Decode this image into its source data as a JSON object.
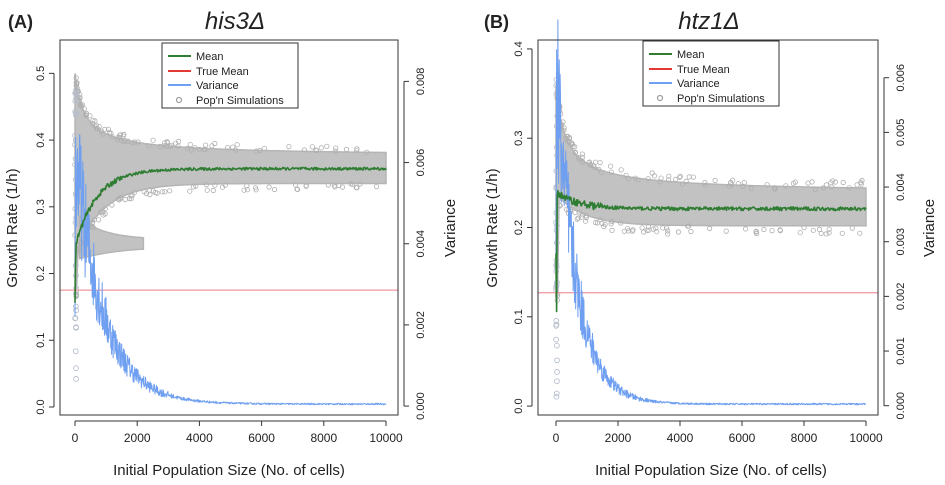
{
  "chart_data": [
    {
      "type": "scatter",
      "panel_label": "(A)",
      "title": "his3Δ",
      "xlabel": "Initial Population Size (No. of cells)",
      "ylabel": "Growth Rate (1/h)",
      "y2label": "Variance",
      "xlim": [
        0,
        10000
      ],
      "ylim": [
        -0.012,
        0.55
      ],
      "y2lim": [
        -0.00022,
        0.00902
      ],
      "xticks": [
        "0",
        "2000",
        "4000",
        "6000",
        "8000",
        "10000"
      ],
      "yticks": [
        "0.0",
        "0.1",
        "0.2",
        "0.3",
        "0.4",
        "0.5"
      ],
      "y2ticks": [
        "0.000",
        "0.002",
        "0.004",
        "0.006",
        "0.008"
      ],
      "true_mean": 0.175,
      "mean_plateau": 0.357,
      "band": {
        "upper_start": 0.5,
        "upper_plateau": 0.375,
        "lower_plateau": 0.335
      },
      "variance_peak": 0.0063,
      "variance_plateau": 5e-05,
      "legend": {
        "position": "top-center",
        "items": [
          {
            "label": "Mean",
            "color": "#2e7d32"
          },
          {
            "label": "True Mean",
            "color": "#e53935"
          },
          {
            "label": "Variance",
            "color": "#6f9ff0"
          },
          {
            "label": "Pop'n Simulations",
            "color": "#9e9e9e"
          }
        ]
      }
    },
    {
      "type": "scatter",
      "panel_label": "(B)",
      "title": "htz1Δ",
      "xlabel": "Initial Population Size (No. of cells)",
      "ylabel": "Growth Rate (1/h)",
      "y2label": "Variance",
      "xlim": [
        0,
        10000
      ],
      "ylim": [
        -0.01,
        0.41
      ],
      "y2lim": [
        -0.00017,
        0.00669
      ],
      "xticks": [
        "0",
        "2000",
        "4000",
        "6000",
        "8000",
        "10000"
      ],
      "yticks": [
        "0.0",
        "0.1",
        "0.2",
        "0.3",
        "0.4"
      ],
      "y2ticks": [
        "0.000",
        "0.001",
        "0.002",
        "0.003",
        "0.004",
        "0.005",
        "0.006"
      ],
      "true_mean": 0.127,
      "mean_plateau": 0.221,
      "band": {
        "upper_start": 0.36,
        "upper_plateau": 0.238,
        "lower_plateau": 0.202
      },
      "variance_peak": 0.0062,
      "variance_plateau": 3e-05,
      "legend": {
        "position": "top-center",
        "items": [
          {
            "label": "Mean",
            "color": "#2e7d32"
          },
          {
            "label": "True Mean",
            "color": "#e53935"
          },
          {
            "label": "Variance",
            "color": "#6f9ff0"
          },
          {
            "label": "Pop'n Simulations",
            "color": "#9e9e9e"
          }
        ]
      }
    }
  ]
}
